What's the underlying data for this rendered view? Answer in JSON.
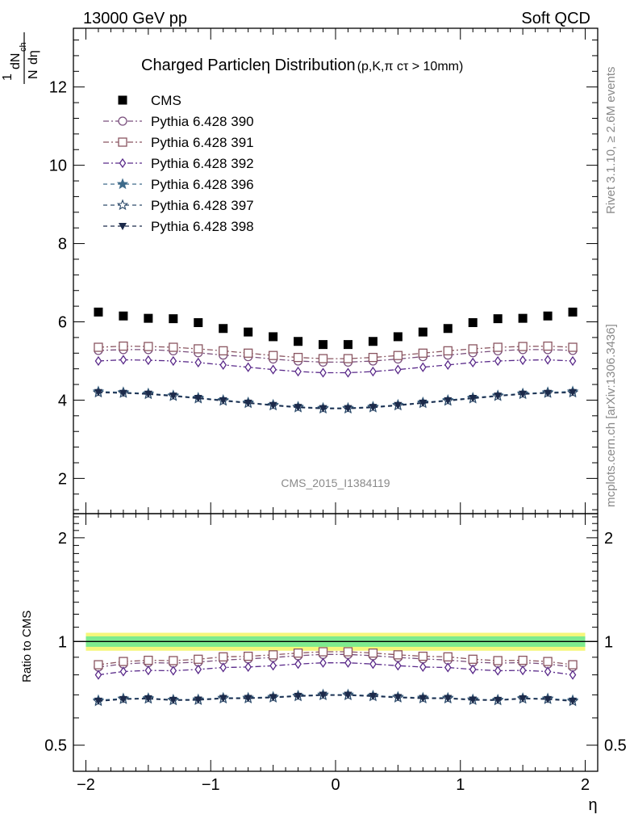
{
  "header": {
    "left": "13000 GeV pp",
    "right": "Soft QCD"
  },
  "side_labels": {
    "rivet": "Rivet 3.1.10, ≥ 2.6M events",
    "source": "mcplots.cern.ch [arXiv:1306.3436]"
  },
  "watermark": "CMS_2015_I1384119",
  "chart_data": {
    "type": "scatter",
    "title": "Charged Particleη Distribution",
    "subtitle": "(p,K,π cτ > 10mm)",
    "xlabel": "η",
    "ylabel": {
      "num_sup": "1",
      "num_den": "N",
      "dn": "dN",
      "ch": "ch",
      "deta": "dη"
    },
    "xlim": [
      -2.1,
      2.1
    ],
    "ylim": [
      1.1,
      13.5
    ],
    "ratio_ylabel": "Ratio to CMS",
    "ratio_ylim": [
      0.42,
      2.35
    ],
    "x_ticks": [
      -2,
      -1,
      0,
      1,
      2
    ],
    "x_tick_labels": [
      "−2",
      "−1",
      "0",
      "1",
      "2"
    ],
    "y_ticks": [
      2,
      4,
      6,
      8,
      10,
      12
    ],
    "y_tick_labels": [
      "2",
      "4",
      "6",
      "8",
      "10",
      "12"
    ],
    "ratio_ticks": [
      0.5,
      1,
      2
    ],
    "ratio_tick_labels": [
      "0.5",
      "1",
      "2"
    ],
    "x": [
      -1.9,
      -1.7,
      -1.5,
      -1.3,
      -1.1,
      -0.9,
      -0.7,
      -0.5,
      -0.3,
      -0.1,
      0.1,
      0.3,
      0.5,
      0.7,
      0.9,
      1.1,
      1.3,
      1.5,
      1.7,
      1.9
    ],
    "series": [
      {
        "name": "CMS",
        "marker": "square-filled",
        "color": "#000000",
        "dash": "",
        "values": [
          6.25,
          6.15,
          6.09,
          6.08,
          5.98,
          5.83,
          5.74,
          5.62,
          5.5,
          5.42,
          5.42,
          5.5,
          5.62,
          5.74,
          5.83,
          5.98,
          6.08,
          6.09,
          6.15,
          6.25
        ]
      },
      {
        "name": "Pythia 6.428 390",
        "marker": "circle-open",
        "color": "#7a4f7d",
        "dash": "7,3,2,3",
        "values": [
          5.27,
          5.29,
          5.29,
          5.26,
          5.21,
          5.15,
          5.11,
          5.05,
          5.0,
          4.97,
          4.97,
          5.0,
          5.05,
          5.11,
          5.15,
          5.21,
          5.26,
          5.29,
          5.29,
          5.27
        ]
      },
      {
        "name": "Pythia 6.428 391",
        "marker": "square-open",
        "color": "#8a5560",
        "dash": "7,3,2,3",
        "values": [
          5.35,
          5.38,
          5.37,
          5.35,
          5.31,
          5.26,
          5.2,
          5.14,
          5.09,
          5.06,
          5.06,
          5.09,
          5.14,
          5.2,
          5.26,
          5.31,
          5.35,
          5.37,
          5.38,
          5.35
        ]
      },
      {
        "name": "Pythia 6.428 392",
        "marker": "diamond-open",
        "color": "#5a2a8a",
        "dash": "7,3,2,3",
        "values": [
          5.0,
          5.03,
          5.02,
          5.0,
          4.96,
          4.9,
          4.84,
          4.78,
          4.73,
          4.7,
          4.7,
          4.73,
          4.78,
          4.84,
          4.9,
          4.96,
          5.0,
          5.02,
          5.03,
          5.0
        ]
      },
      {
        "name": "Pythia 6.428 396",
        "marker": "star-filled",
        "color": "#3d6a8a",
        "dash": "5,4",
        "values": [
          4.22,
          4.2,
          4.17,
          4.12,
          4.06,
          4.0,
          3.94,
          3.88,
          3.83,
          3.8,
          3.8,
          3.83,
          3.88,
          3.94,
          4.0,
          4.06,
          4.12,
          4.17,
          4.2,
          4.22
        ]
      },
      {
        "name": "Pythia 6.428 397",
        "marker": "star-open",
        "color": "#2d4a6a",
        "dash": "5,4",
        "values": [
          4.19,
          4.18,
          4.15,
          4.1,
          4.04,
          3.98,
          3.92,
          3.86,
          3.81,
          3.78,
          3.78,
          3.81,
          3.86,
          3.92,
          3.98,
          4.04,
          4.1,
          4.15,
          4.18,
          4.19
        ]
      },
      {
        "name": "Pythia 6.428 398",
        "marker": "triangle-down-filled",
        "color": "#1c2a4a",
        "dash": "5,4",
        "values": [
          4.2,
          4.18,
          4.16,
          4.11,
          4.05,
          3.99,
          3.93,
          3.87,
          3.82,
          3.79,
          3.79,
          3.82,
          3.87,
          3.93,
          3.99,
          4.05,
          4.11,
          4.16,
          4.18,
          4.2
        ]
      }
    ],
    "ratio_band": {
      "yellow_half_width": 0.06,
      "green_half_width": 0.035
    }
  }
}
